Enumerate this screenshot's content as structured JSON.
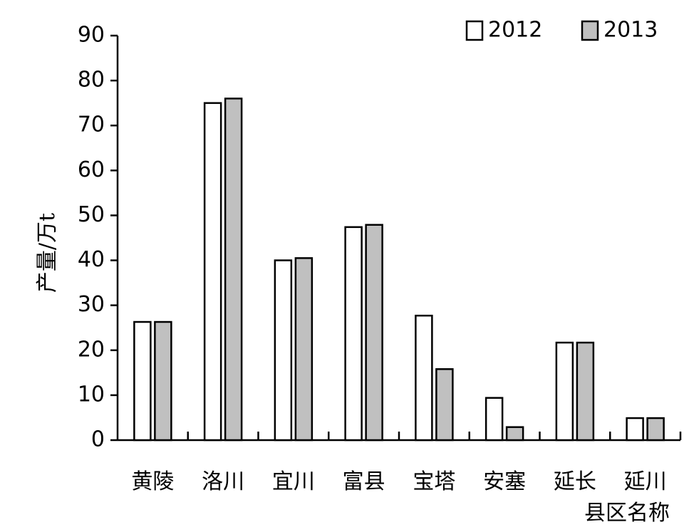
{
  "chart_data": {
    "type": "bar",
    "y_label": "产量/万t",
    "x_label": "县区名称",
    "categories": [
      "黄陵",
      "洛川",
      "宜川",
      "富县",
      "宝塔",
      "安塞",
      "延长",
      "延川"
    ],
    "series": [
      {
        "name": "2012",
        "color": "#ffffff",
        "values": [
          26.3,
          75,
          40,
          47.4,
          27.7,
          9.4,
          21.7,
          4.9
        ]
      },
      {
        "name": "2013",
        "color": "#c0c0c0",
        "values": [
          26.3,
          76,
          40.5,
          47.9,
          15.8,
          2.9,
          21.7,
          4.9
        ]
      }
    ],
    "ylim": [
      0,
      90
    ],
    "yticks": [
      0,
      10,
      20,
      30,
      40,
      50,
      60,
      70,
      80,
      90
    ],
    "legend": "top-right"
  }
}
